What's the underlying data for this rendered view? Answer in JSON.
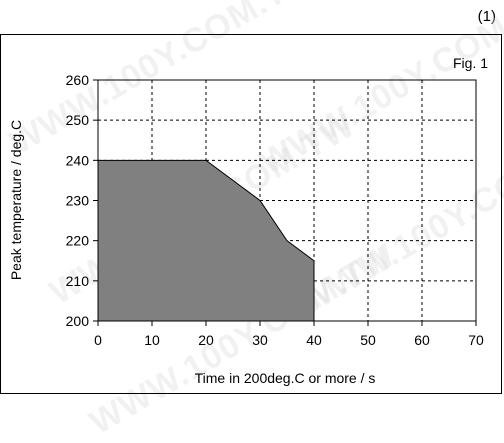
{
  "page_number": "(1)",
  "watermark": "WWW.100Y.COM.TW",
  "colors": {
    "fill": "#808080",
    "line": "#000000",
    "grid": "#000000"
  },
  "chart_data": {
    "type": "area",
    "title": "Fig. 1",
    "xlabel": "Time in 200deg.C or more / s",
    "ylabel": "Peak temperature / deg.C",
    "xlim": [
      0,
      70
    ],
    "ylim": [
      200,
      260
    ],
    "xticks": [
      0,
      10,
      20,
      30,
      40,
      50,
      60,
      70
    ],
    "yticks": [
      200,
      210,
      220,
      230,
      240,
      250,
      260
    ],
    "grid": "dashed",
    "series": [
      {
        "x": [
          0,
          20,
          30,
          35,
          40,
          40,
          0
        ],
        "y": [
          240,
          240,
          230,
          220,
          215,
          200,
          200
        ]
      }
    ]
  }
}
